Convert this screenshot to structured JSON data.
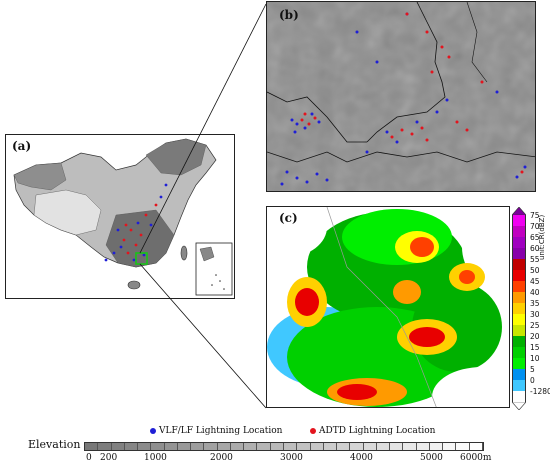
{
  "panels": {
    "a_label": "(a)",
    "b_label": "(b)",
    "c_label": "(c)"
  },
  "radar_colorbar": {
    "unit": "unit:CR(dBZ)",
    "ticks": [
      "75",
      "70",
      "65",
      "60",
      "55",
      "50",
      "45",
      "40",
      "35",
      "30",
      "25",
      "20",
      "15",
      "10",
      "5",
      "0",
      "-1280"
    ],
    "colors": [
      "#f000f0",
      "#c000c0",
      "#a000c0",
      "#8800aa",
      "#c00000",
      "#e80000",
      "#ff4000",
      "#ff9a00",
      "#ffd000",
      "#ffff00",
      "#c8e600",
      "#00b000",
      "#00d000",
      "#00ee00",
      "#0090f0",
      "#40c8ff",
      "#ffffff"
    ]
  },
  "legend": {
    "vlf_label": "VLF/LF Lightning Location",
    "vlf_color": "#1f1fd6",
    "adtd_label": "ADTD Lightning Location",
    "adtd_color": "#e3141e"
  },
  "elevation": {
    "label": "Elevation",
    "ticks": [
      "0",
      "200",
      "1000",
      "2000",
      "3000",
      "4000",
      "5000",
      "6000m"
    ]
  }
}
